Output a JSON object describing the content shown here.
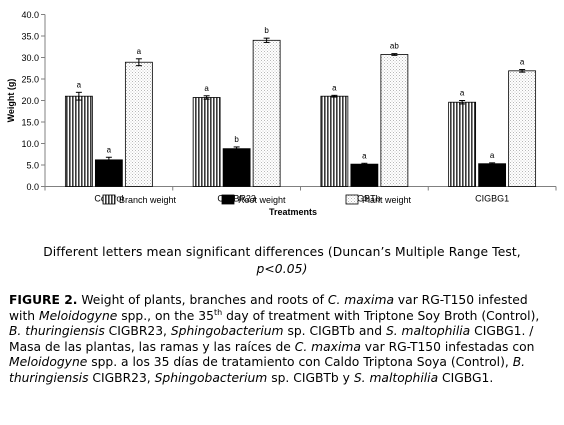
{
  "chart_data": {
    "type": "bar",
    "ylabel": "Weight (g)",
    "xlabel": "Treatments",
    "ylim": [
      0,
      40
    ],
    "yticks": [
      "0.0",
      "5.0",
      "10.0",
      "15.0",
      "20.0",
      "25.0",
      "30.0",
      "35.0",
      "40.0"
    ],
    "categories": [
      "Control",
      "CIGBR23",
      "CIGBTb",
      "CIGBG1"
    ],
    "series": [
      {
        "name": "Branch weight",
        "pattern": "vertical-lines",
        "values": [
          21.0,
          20.7,
          21.0,
          19.6
        ],
        "errors": [
          0.9,
          0.4,
          0.2,
          0.4
        ],
        "letters": [
          "a",
          "a",
          "a",
          "a"
        ]
      },
      {
        "name": "Root weight",
        "pattern": "solid-black",
        "values": [
          6.2,
          8.8,
          5.2,
          5.3
        ],
        "errors": [
          0.6,
          0.4,
          0.2,
          0.2
        ],
        "letters": [
          "a",
          "b",
          "a",
          "a"
        ]
      },
      {
        "name": "Plant weight",
        "pattern": "dotted",
        "values": [
          28.9,
          34.0,
          30.7,
          26.9
        ],
        "errors": [
          0.8,
          0.5,
          0.2,
          0.3
        ],
        "letters": [
          "a",
          "b",
          "ab",
          "a"
        ]
      }
    ],
    "legend_position": "bottom-right",
    "grid": false
  },
  "note": {
    "line1": "Different letters mean significant differences (Duncan’s Multiple Range Test,",
    "line2": "p<0.05)"
  },
  "caption": {
    "label": "FIGURE 2.",
    "t1": " Weight of plants, branches and roots of ",
    "i1": "C.  maxima",
    "t2": " var RG-T150 infested with ",
    "i2": "Meloidogyne",
    "t3": " spp., on the 35",
    "sup1": "th",
    "t4": " day of treatment with Triptone Soy Broth (Control), ",
    "i3": "B. thuringiensis",
    "t5": " CIGBR23, ",
    "i4": "Sphingobacterium",
    "t6": " sp. CIGBTb and ",
    "i5": "S. maltophilia",
    "t7": " CIGBG1. / Masa de las plantas, las ramas y las raíces de ",
    "i6": "C. maxima",
    "t8": " var RG-T150 infestadas con ",
    "i7": "Meloidogyne",
    "t9": " spp. a los 35 días de tratamiento con Caldo Triptona Soya (Control), ",
    "i8": "B. thuringiensis",
    "t10": " CIGBR23, ",
    "i9": "Sphingobacterium",
    "t11": " sp. CIGBTb y ",
    "i10": "S. maltophilia",
    "t12": " CIGBG1."
  }
}
